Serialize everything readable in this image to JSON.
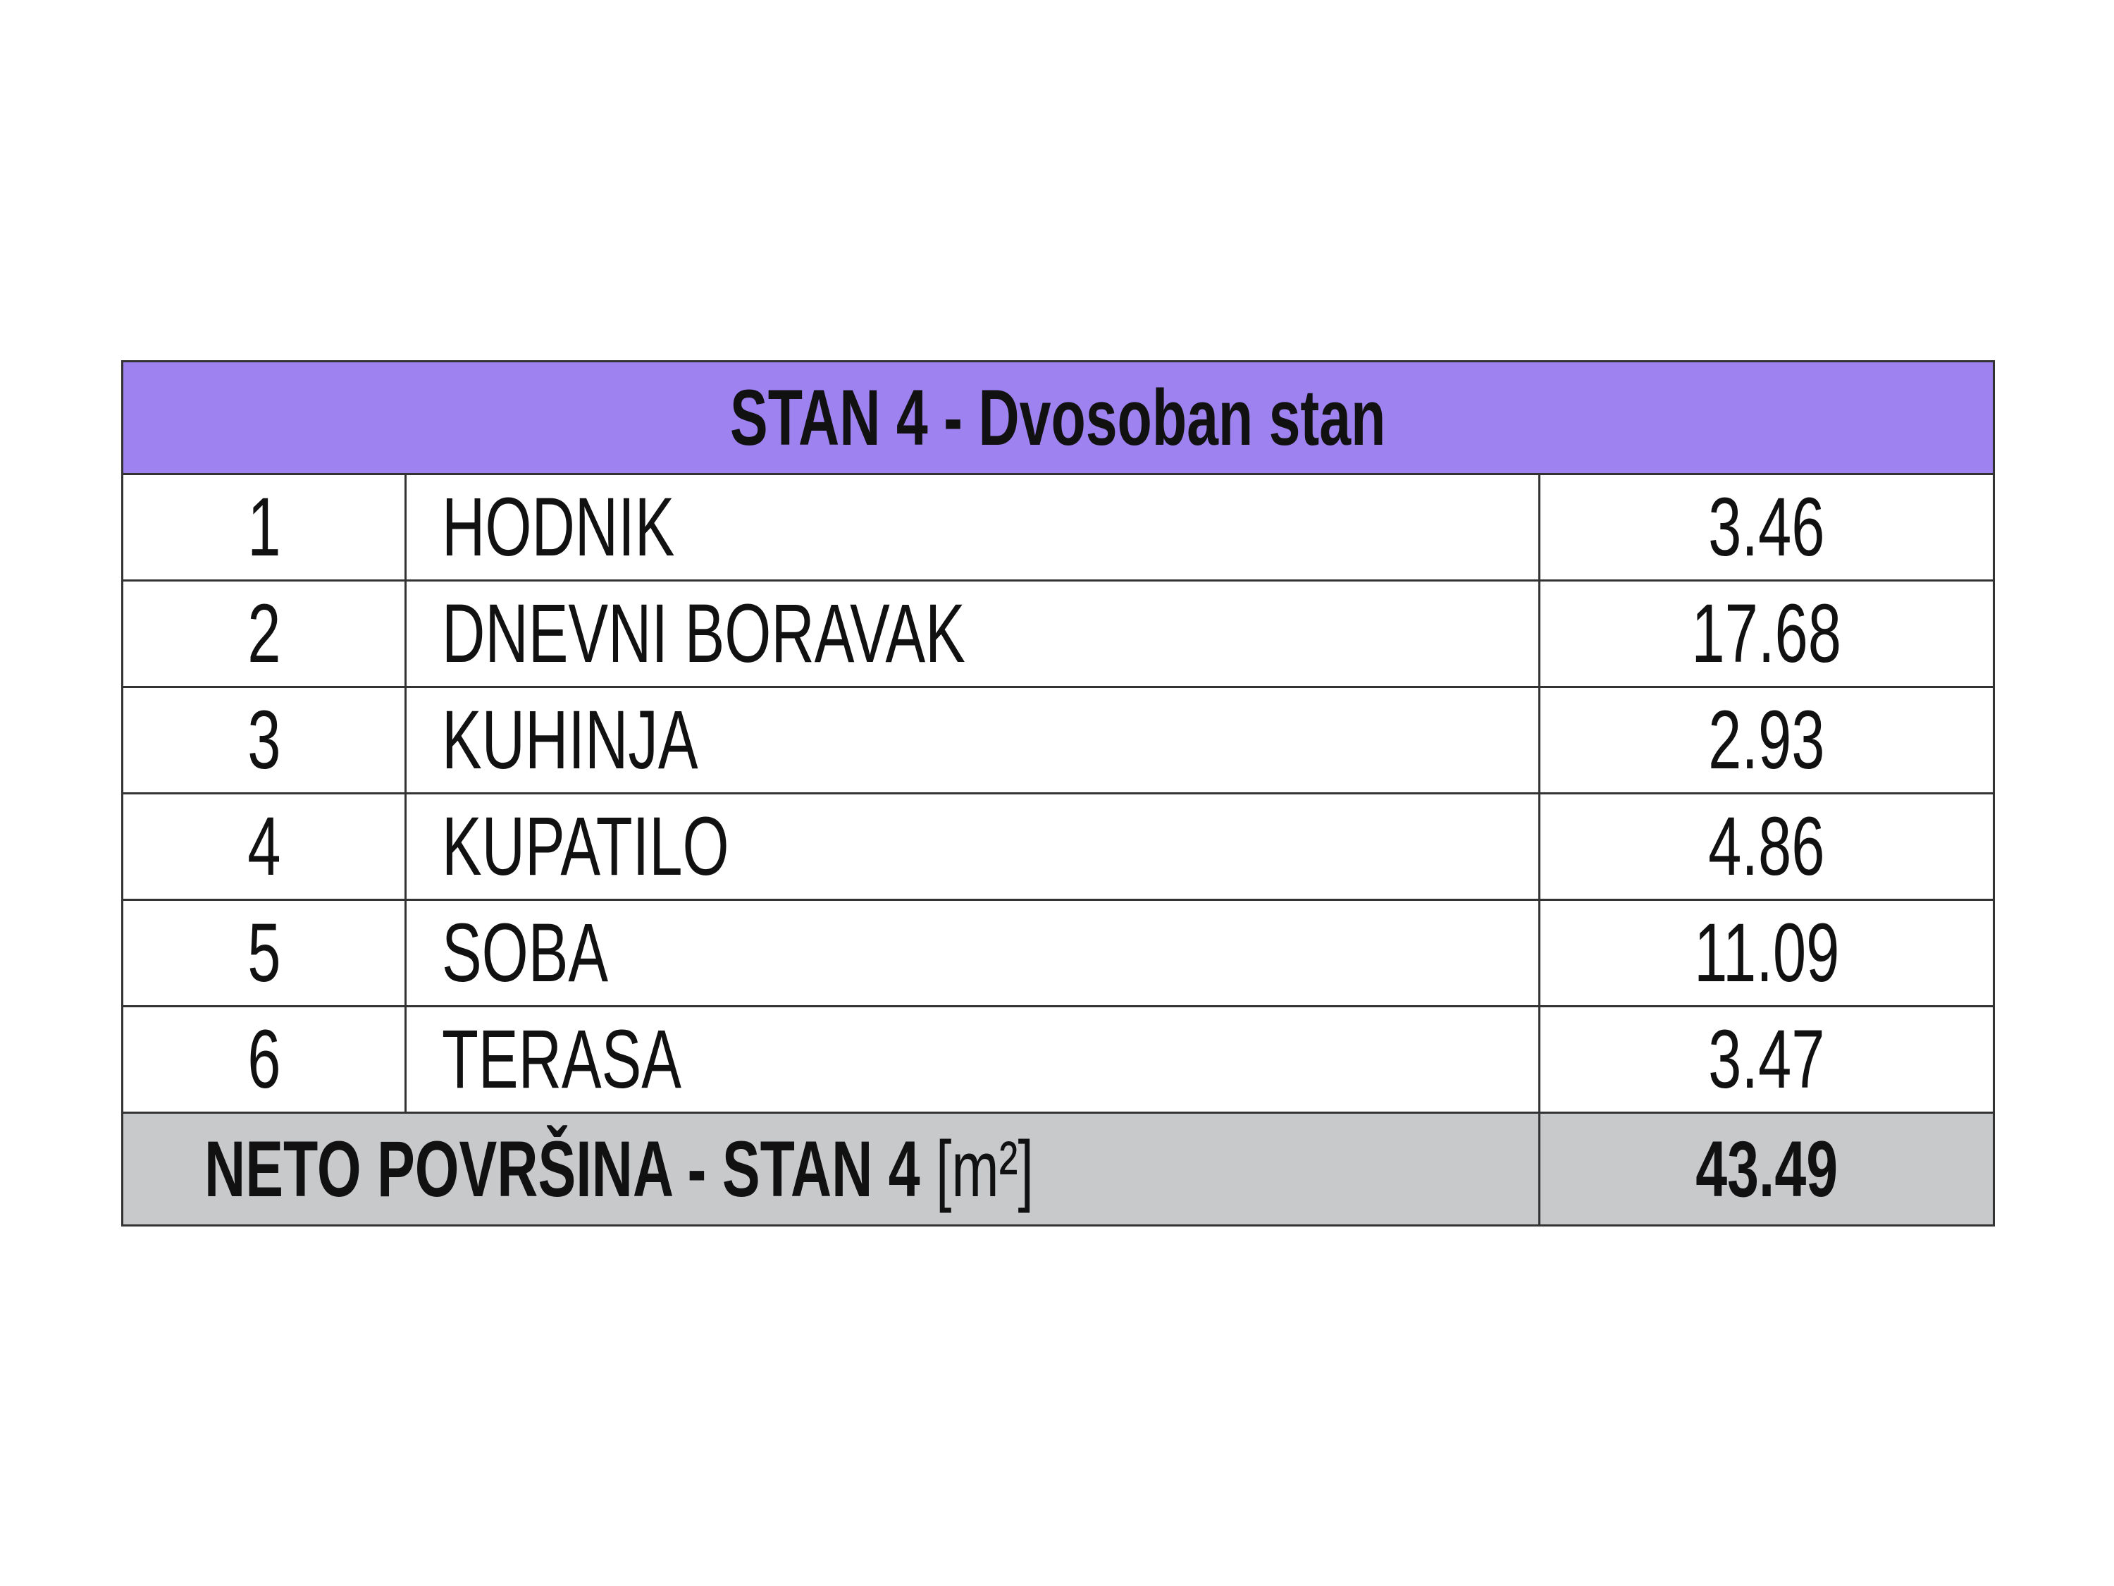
{
  "table": {
    "title": "STAN 4 - Dvosoban stan",
    "rows": [
      [
        "1",
        "HODNIK",
        "3.46"
      ],
      [
        "2",
        "DNEVNI BORAVAK",
        "17.68"
      ],
      [
        "3",
        "KUHINJA",
        "2.93"
      ],
      [
        "4",
        "KUPATILO",
        "4.86"
      ],
      [
        "5",
        "SOBA",
        "11.09"
      ],
      [
        "6",
        "TERASA",
        "3.47"
      ]
    ],
    "footer": {
      "label": "NETO POVRŠINA - STAN 4",
      "unit": "[m²]",
      "total": "43.49"
    }
  }
}
